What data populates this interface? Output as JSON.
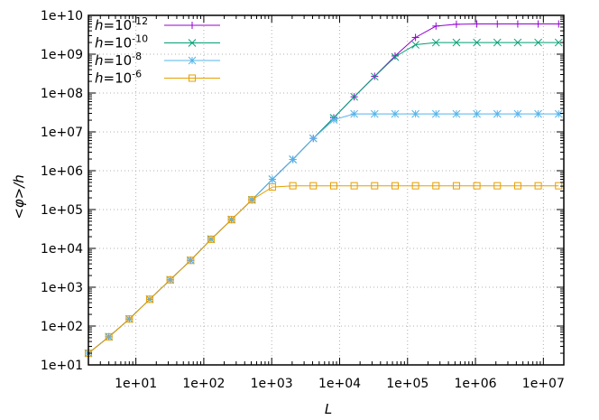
{
  "chart_data": {
    "type": "line",
    "xlabel": "L",
    "ylabel": "<φ>/h",
    "xscale": "log",
    "yscale": "log",
    "xlim": [
      2,
      20000000
    ],
    "ylim": [
      10,
      10000000000
    ],
    "grid": true,
    "legend_position": "top-left",
    "x_ticks": [
      {
        "value": 10,
        "label": "1e+01"
      },
      {
        "value": 100,
        "label": "1e+02"
      },
      {
        "value": 1000,
        "label": "1e+03"
      },
      {
        "value": 10000,
        "label": "1e+04"
      },
      {
        "value": 100000,
        "label": "1e+05"
      },
      {
        "value": 1000000,
        "label": "1e+06"
      },
      {
        "value": 10000000,
        "label": "1e+07"
      }
    ],
    "y_ticks": [
      {
        "value": 10,
        "label": "1e+01"
      },
      {
        "value": 100,
        "label": "1e+02"
      },
      {
        "value": 1000,
        "label": "1e+03"
      },
      {
        "value": 10000,
        "label": "1e+04"
      },
      {
        "value": 100000,
        "label": "1e+05"
      },
      {
        "value": 1000000,
        "label": "1e+06"
      },
      {
        "value": 10000000,
        "label": "1e+07"
      },
      {
        "value": 100000000,
        "label": "1e+08"
      },
      {
        "value": 1000000000,
        "label": "1e+09"
      },
      {
        "value": 10000000000,
        "label": "1e+10"
      }
    ],
    "x": [
      2,
      4,
      8,
      16,
      32,
      64,
      128,
      256,
      512,
      1024,
      2048,
      4096,
      8192,
      16384,
      32768,
      65536,
      131072,
      262144,
      524288,
      1048576,
      2097152,
      4194304,
      8388608,
      16777216
    ],
    "series": [
      {
        "name_base": "h=10",
        "name_exp": "-12",
        "color": "#9400d3",
        "marker": "plus",
        "values": [
          20,
          53,
          152,
          490,
          1550,
          4920,
          17200,
          55000,
          178000,
          600000,
          1950000,
          6800000,
          23000000,
          80000000,
          270000000,
          900000000,
          2700000000,
          5300000000,
          5900000000,
          6000000000,
          6000000000,
          6000000000,
          6000000000,
          6000000000
        ]
      },
      {
        "name_base": "h=10",
        "name_exp": "-10",
        "color": "#009e73",
        "marker": "x",
        "values": [
          20,
          53,
          152,
          490,
          1550,
          4920,
          17200,
          55000,
          178000,
          600000,
          1950000,
          6800000,
          23000000,
          80000000,
          265000000,
          850000000,
          1750000000,
          2000000000,
          2000000000,
          2000000000,
          2000000000,
          2000000000,
          2000000000,
          2000000000
        ]
      },
      {
        "name_base": "h=10",
        "name_exp": "-8",
        "color": "#56b4e9",
        "marker": "star",
        "values": [
          20,
          53,
          152,
          490,
          1550,
          4920,
          17200,
          55000,
          178000,
          600000,
          1950000,
          6800000,
          20500000,
          29000000,
          29000000,
          29000000,
          29000000,
          29000000,
          29000000,
          29000000,
          29000000,
          29000000,
          29000000,
          29000000
        ]
      },
      {
        "name_base": "h=10",
        "name_exp": "-6",
        "color": "#e69f00",
        "marker": "square",
        "values": [
          20,
          53,
          152,
          490,
          1550,
          4920,
          17200,
          55000,
          178000,
          380000,
          410000,
          410000,
          410000,
          410000,
          410000,
          410000,
          410000,
          410000,
          410000,
          410000,
          410000,
          410000,
          410000,
          410000
        ]
      }
    ]
  }
}
